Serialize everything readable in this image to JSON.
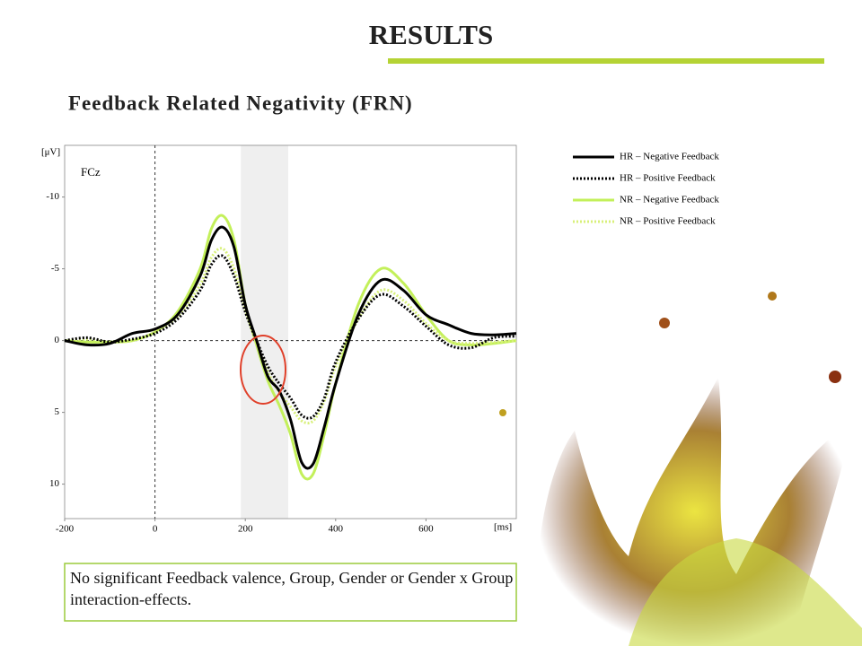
{
  "slide": {
    "title": "RESULTS",
    "subtitle": "Feedback Related Negativity (FRN)",
    "note": "No significant Feedback valence, Group, Gender or Gender x Group interaction-effects."
  },
  "chart_data": {
    "type": "line",
    "annotation": "FCz",
    "ylabel": "[μV]",
    "xlabel": "[ms]",
    "x": [
      -200,
      -150,
      -100,
      -50,
      0,
      50,
      100,
      125,
      150,
      175,
      200,
      225,
      250,
      275,
      300,
      325,
      350,
      375,
      400,
      450,
      500,
      550,
      600,
      650,
      700,
      750,
      800
    ],
    "series": [
      {
        "name": "HR – Negative Feedback",
        "color": "#000000",
        "style": "solid",
        "values": [
          0,
          0.3,
          0.2,
          -0.5,
          -0.8,
          -1.8,
          -4.5,
          -7,
          -7.9,
          -6.5,
          -2.5,
          0,
          2.5,
          3.5,
          5.5,
          8.5,
          8.6,
          6,
          3,
          -1.8,
          -4.2,
          -3.5,
          -1.8,
          -1.1,
          -0.5,
          -0.4,
          -0.5
        ]
      },
      {
        "name": "HR – Positive Feedback",
        "color": "#000000",
        "style": "dotted",
        "values": [
          0,
          -0.2,
          0.1,
          -0.1,
          -0.5,
          -1.5,
          -3.5,
          -5.3,
          -5.9,
          -4.5,
          -2,
          0,
          1.8,
          3,
          4,
          5.2,
          5.3,
          4,
          1.5,
          -1.5,
          -3.2,
          -2.4,
          -1,
          0.3,
          0.5,
          -0.2,
          -0.3
        ]
      },
      {
        "name": "NR – Negative Feedback",
        "color": "#c3f05a",
        "style": "solid",
        "values": [
          0,
          0.1,
          0.1,
          0,
          -0.6,
          -2,
          -5,
          -7.8,
          -8.7,
          -7,
          -2.5,
          0.3,
          2.8,
          4.5,
          6.5,
          9.3,
          9.3,
          6.5,
          3,
          -2.5,
          -5,
          -4,
          -1.8,
          0,
          0.3,
          0.2,
          0
        ]
      },
      {
        "name": "NR – Positive Feedback",
        "color": "#d8f07a",
        "style": "dotted",
        "values": [
          0,
          -0.1,
          0.1,
          0,
          -0.6,
          -1.7,
          -3.9,
          -5.8,
          -6.4,
          -5,
          -2.2,
          0.2,
          2.2,
          3.6,
          4.6,
          5.6,
          5.6,
          4.2,
          1.8,
          -1.5,
          -3.5,
          -2.8,
          -1.2,
          0,
          0.2,
          0.1,
          0
        ]
      }
    ],
    "xlim": [
      -200,
      800
    ],
    "xticks": [
      -200,
      0,
      200,
      400,
      600
    ],
    "ylim": [
      -13.6,
      12.4
    ],
    "yticks": [
      -10,
      -5,
      0,
      5,
      10
    ],
    "y_inverted": true,
    "shaded_region": [
      190,
      295
    ],
    "legend": "outside top right"
  }
}
